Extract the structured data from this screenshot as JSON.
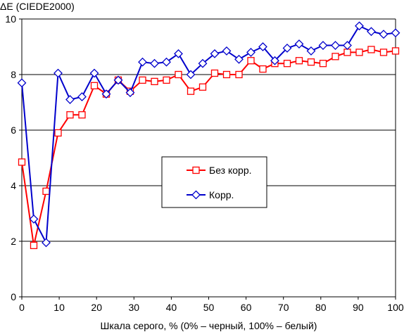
{
  "chart_data": {
    "type": "line",
    "title": "",
    "ylabel": "ΔE (CIEDE2000)",
    "xlabel": "Шкала серого, % (0% – черный, 100% – белый)",
    "xlim": [
      0,
      100
    ],
    "ylim": [
      0,
      10
    ],
    "xticks": [
      0,
      10,
      20,
      30,
      40,
      50,
      60,
      70,
      80,
      90,
      100
    ],
    "yticks": [
      0,
      2,
      4,
      6,
      8,
      10
    ],
    "grid": "horizontal",
    "legend_position": "center",
    "x": [
      0,
      3.2,
      6.5,
      9.7,
      12.9,
      16.1,
      19.4,
      22.6,
      25.8,
      29.0,
      32.3,
      35.5,
      38.7,
      41.9,
      45.2,
      48.4,
      51.6,
      54.8,
      58.1,
      61.3,
      64.5,
      67.7,
      71.0,
      74.2,
      77.4,
      80.6,
      83.9,
      87.1,
      90.3,
      93.5,
      96.8,
      100
    ],
    "series": [
      {
        "name": "Без корр.",
        "color": "#ff0000",
        "marker": "square",
        "values": [
          4.85,
          1.85,
          3.8,
          5.9,
          6.55,
          6.55,
          7.6,
          7.3,
          7.8,
          7.4,
          7.8,
          7.75,
          7.8,
          8.0,
          7.4,
          7.55,
          8.05,
          8.0,
          8.0,
          8.5,
          8.2,
          8.4,
          8.4,
          8.5,
          8.45,
          8.4,
          8.65,
          8.8,
          8.8,
          8.9,
          8.8,
          8.85
        ]
      },
      {
        "name": "Корр.",
        "color": "#0000cc",
        "marker": "diamond",
        "values": [
          7.7,
          2.8,
          1.95,
          8.05,
          7.1,
          7.2,
          8.05,
          7.3,
          7.8,
          7.35,
          8.45,
          8.4,
          8.45,
          8.75,
          8.0,
          8.4,
          8.75,
          8.85,
          8.55,
          8.8,
          9.0,
          8.5,
          8.95,
          9.1,
          8.85,
          9.05,
          9.05,
          9.05,
          9.75,
          9.55,
          9.45,
          9.5
        ]
      }
    ]
  }
}
